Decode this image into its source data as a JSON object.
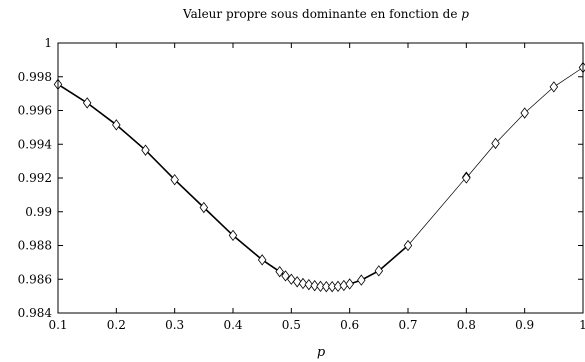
{
  "chart_data": {
    "type": "line",
    "title": "Valeur propre sous dominante en fonction de ",
    "title_var": "p",
    "xlabel": "p",
    "ylabel": "",
    "xlim": [
      0.1,
      1.0
    ],
    "ylim": [
      0.984,
      1.0
    ],
    "x_ticks": [
      0.1,
      0.2,
      0.3,
      0.4,
      0.5,
      0.6,
      0.7,
      0.8,
      0.9,
      1.0
    ],
    "x_tick_labels": [
      "0.1",
      "0.2",
      "0.3",
      "0.4",
      "0.5",
      "0.6",
      "0.7",
      "0.8",
      "0.9",
      "1"
    ],
    "y_ticks": [
      0.984,
      0.986,
      0.988,
      0.99,
      0.992,
      0.994,
      0.996,
      0.998,
      1.0
    ],
    "y_tick_labels": [
      "0.984",
      "0.986",
      "0.988",
      "0.99",
      "0.992",
      "0.994",
      "0.996",
      "0.998",
      "1"
    ],
    "grid": false,
    "legend": "none",
    "series": [
      {
        "marker": "diamond",
        "x": [
          0.1,
          0.15,
          0.2,
          0.25,
          0.3,
          0.35,
          0.4,
          0.45,
          0.48,
          0.49,
          0.5,
          0.51,
          0.52,
          0.53,
          0.54,
          0.55,
          0.56,
          0.57,
          0.58,
          0.59,
          0.6,
          0.62,
          0.65,
          0.7,
          0.8,
          0.8,
          0.85,
          0.9,
          0.95,
          1.0
        ],
        "y": [
          0.99755,
          0.99645,
          0.99515,
          0.99365,
          0.9919,
          0.99025,
          0.9886,
          0.98715,
          0.98645,
          0.9862,
          0.986,
          0.98585,
          0.98575,
          0.98568,
          0.98562,
          0.98558,
          0.98556,
          0.98556,
          0.98558,
          0.98563,
          0.98572,
          0.98595,
          0.9865,
          0.988,
          0.99205,
          0.992,
          0.99405,
          0.99585,
          0.9974,
          0.99855
        ]
      }
    ]
  }
}
